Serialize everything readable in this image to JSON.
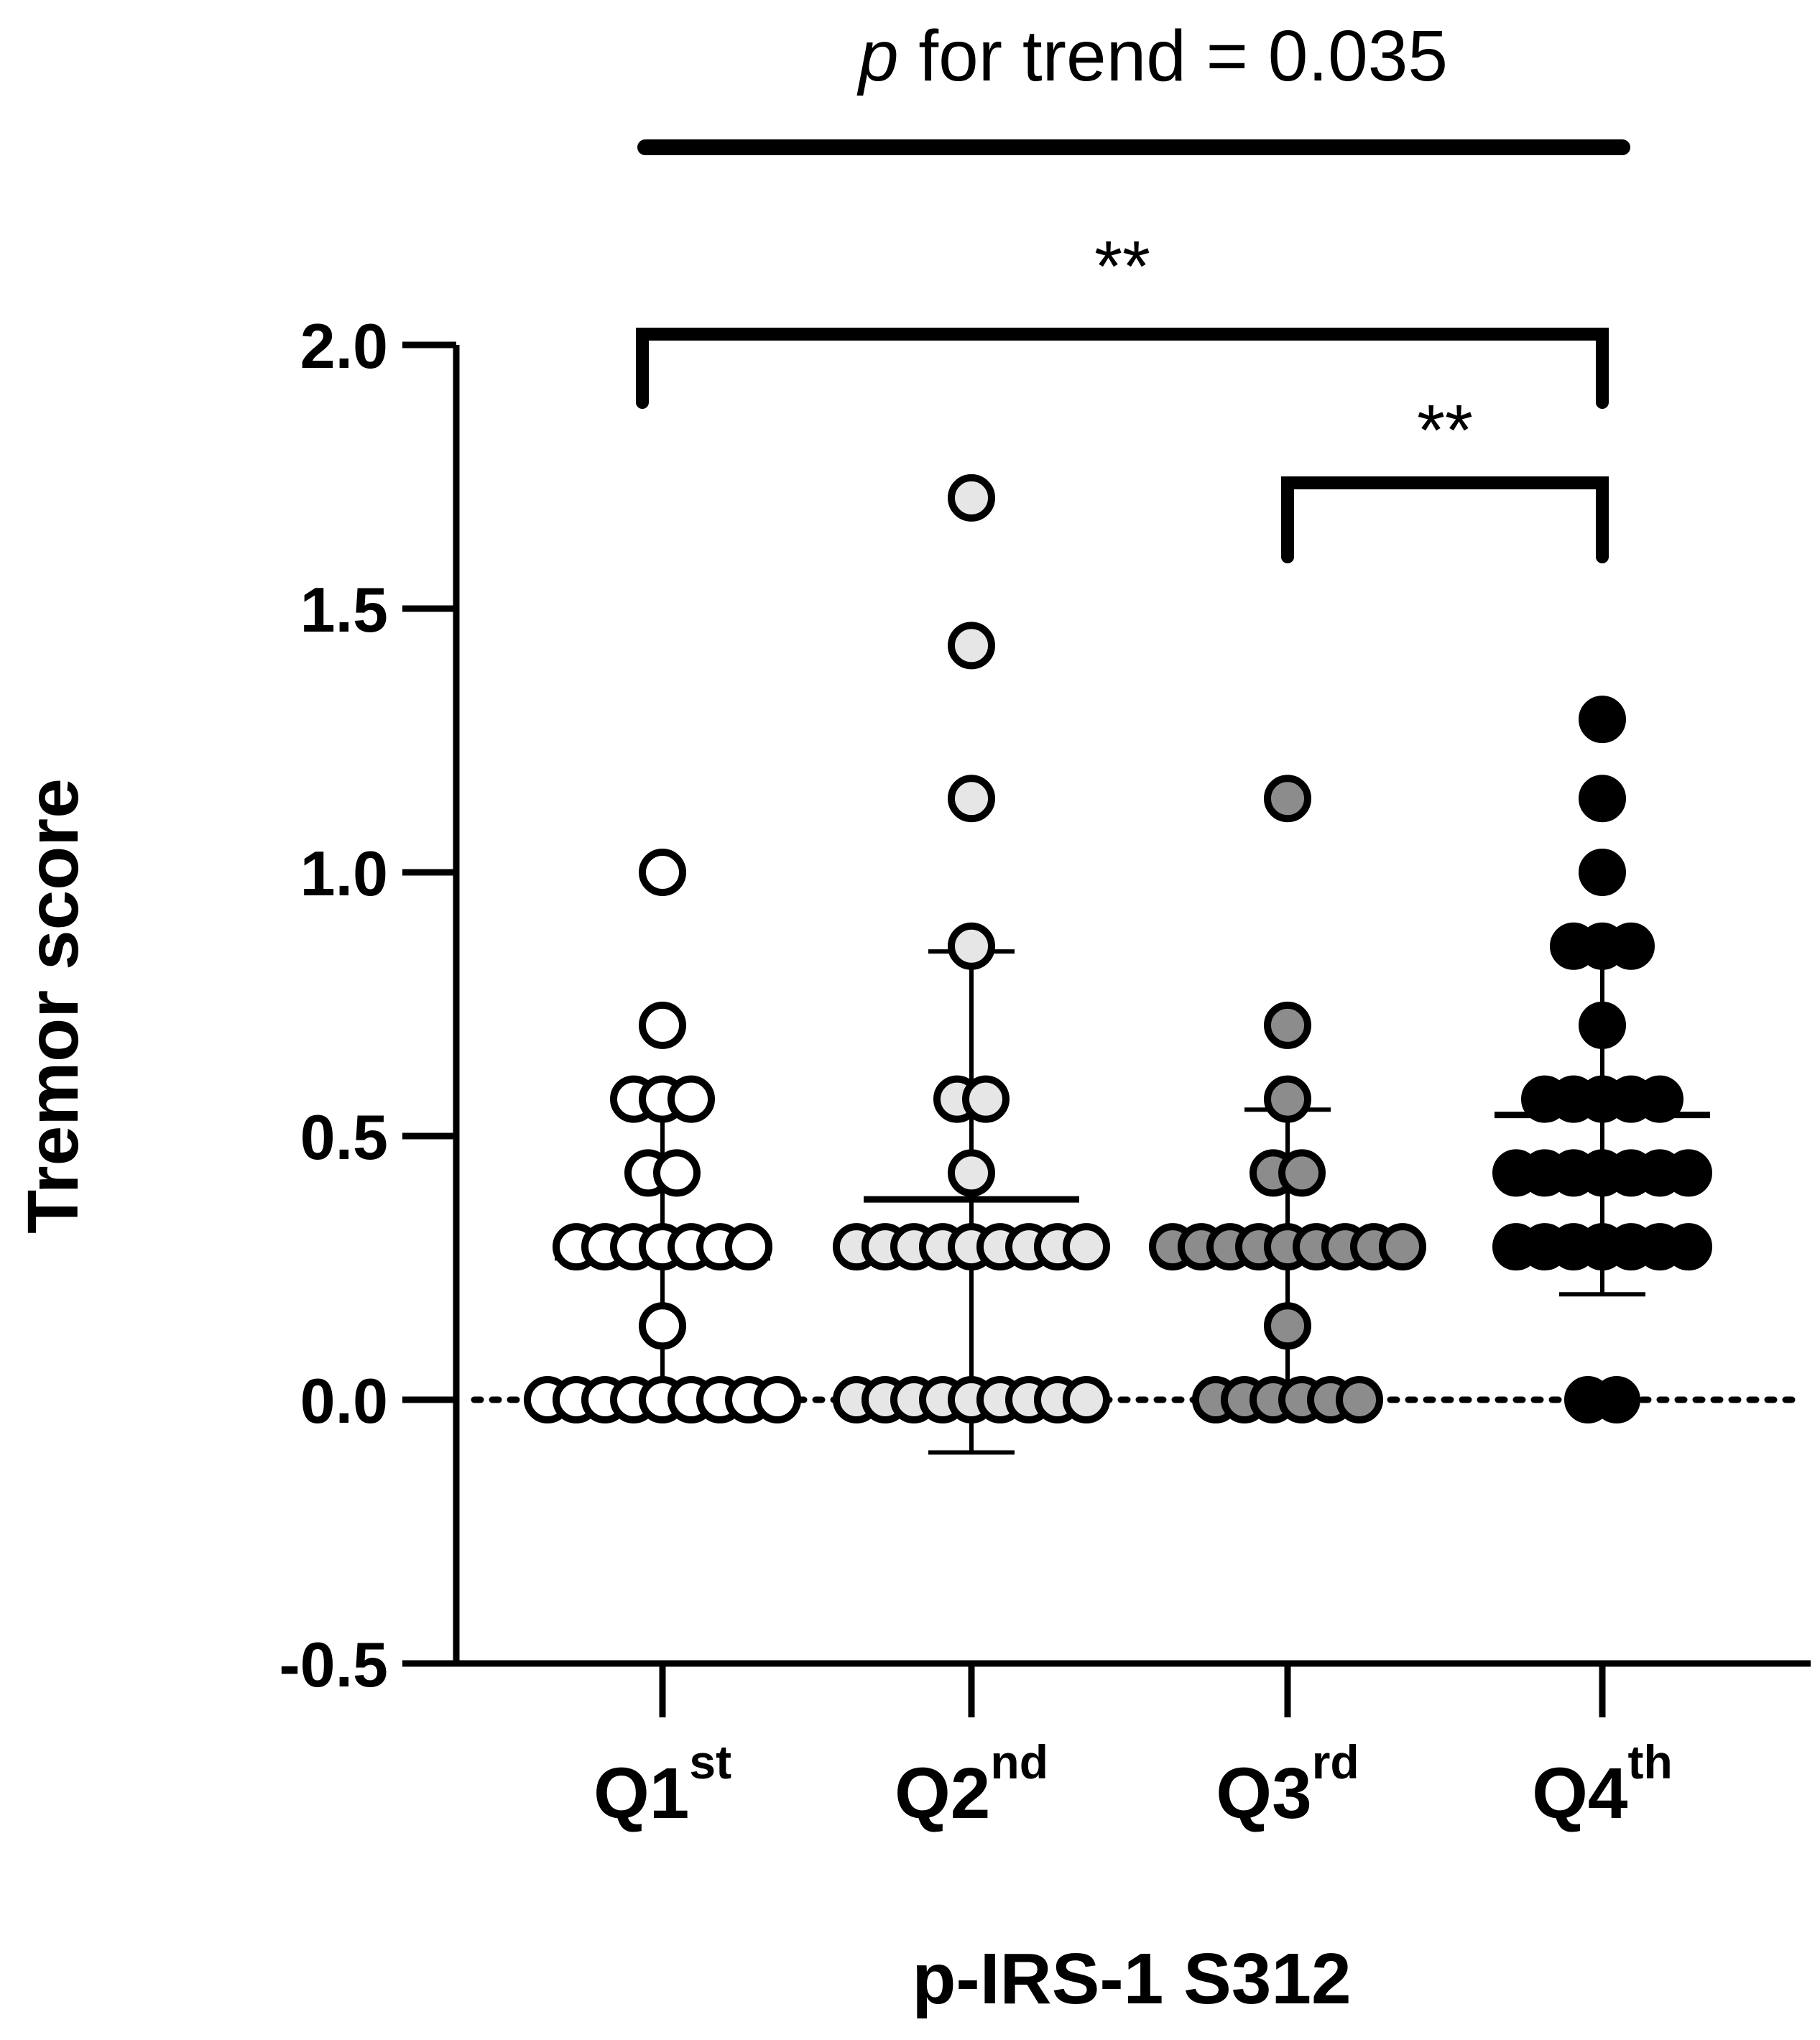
{
  "chart_data": {
    "type": "scatter",
    "xlabel": "p-IRS-1 S312",
    "ylabel": "Tremor score",
    "ylim": [
      -0.5,
      2.0
    ],
    "yticks": [
      "2.0",
      "1.5",
      "1.0",
      "0.5",
      "0.0",
      "-0.5"
    ],
    "categories": [
      {
        "base": "Q1",
        "sup": "st"
      },
      {
        "base": "Q2",
        "sup": "nd"
      },
      {
        "base": "Q3",
        "sup": "rd"
      },
      {
        "base": "Q4",
        "sup": "th"
      }
    ],
    "reference_line": {
      "y": 0.0,
      "style": "dotted"
    },
    "trend": {
      "italic": "p",
      "text": " for trend = 0.035"
    },
    "significance": [
      {
        "from": 0,
        "to": 3,
        "label": "**"
      },
      {
        "from": 2,
        "to": 3,
        "label": "**"
      }
    ],
    "series": [
      {
        "fill": "#ffffff",
        "mean": 0.27,
        "sd_low": 0.0,
        "sd_high": 0.55,
        "points": [
          {
            "y": 1.0,
            "count": 1
          },
          {
            "y": 0.71,
            "count": 1
          },
          {
            "y": 0.57,
            "count": 3
          },
          {
            "y": 0.43,
            "count": 2
          },
          {
            "y": 0.29,
            "count": 7
          },
          {
            "y": 0.14,
            "count": 1
          },
          {
            "y": 0.0,
            "count": 9
          }
        ]
      },
      {
        "fill": "#e6e6e6",
        "mean": 0.38,
        "sd_low": -0.1,
        "sd_high": 0.85,
        "points": [
          {
            "y": 1.71,
            "count": 1
          },
          {
            "y": 1.43,
            "count": 1
          },
          {
            "y": 1.14,
            "count": 1
          },
          {
            "y": 0.86,
            "count": 1
          },
          {
            "y": 0.57,
            "count": 2
          },
          {
            "y": 0.43,
            "count": 1
          },
          {
            "y": 0.29,
            "count": 9
          },
          {
            "y": 0.0,
            "count": 9
          }
        ]
      },
      {
        "fill": "#8c8c8c",
        "mean": 0.28,
        "sd_low": 0.0,
        "sd_high": 0.55,
        "points": [
          {
            "y": 1.14,
            "count": 1
          },
          {
            "y": 0.71,
            "count": 1
          },
          {
            "y": 0.57,
            "count": 1
          },
          {
            "y": 0.43,
            "count": 2
          },
          {
            "y": 0.29,
            "count": 9
          },
          {
            "y": 0.14,
            "count": 1
          },
          {
            "y": 0.0,
            "count": 6
          }
        ]
      },
      {
        "fill": "#000000",
        "mean": 0.54,
        "sd_low": 0.2,
        "sd_high": 0.88,
        "points": [
          {
            "y": 1.29,
            "count": 1
          },
          {
            "y": 1.14,
            "count": 1
          },
          {
            "y": 1.0,
            "count": 1
          },
          {
            "y": 0.86,
            "count": 3
          },
          {
            "y": 0.71,
            "count": 1
          },
          {
            "y": 0.57,
            "count": 5
          },
          {
            "y": 0.43,
            "count": 7
          },
          {
            "y": 0.29,
            "count": 7
          },
          {
            "y": 0.0,
            "count": 2
          }
        ]
      }
    ]
  }
}
